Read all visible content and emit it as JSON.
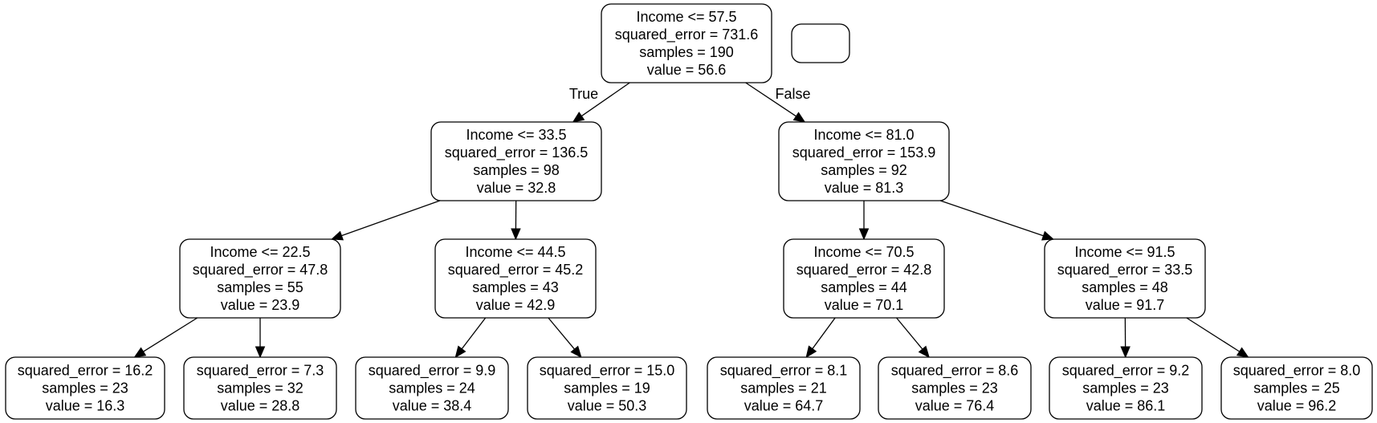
{
  "tree": {
    "nodes": [
      {
        "id": "n0",
        "lines": [
          "Income <= 57.5",
          "squared_error = 731.6",
          "samples = 190",
          "value = 56.6"
        ]
      },
      {
        "id": "n1",
        "lines": [
          "Income <= 33.5",
          "squared_error = 136.5",
          "samples = 98",
          "value = 32.8"
        ]
      },
      {
        "id": "n2",
        "lines": [
          "Income <= 22.5",
          "squared_error = 47.8",
          "samples = 55",
          "value = 23.9"
        ]
      },
      {
        "id": "n3",
        "lines": [
          "squared_error = 16.2",
          "samples = 23",
          "value = 16.3"
        ]
      },
      {
        "id": "n4",
        "lines": [
          "squared_error = 7.3",
          "samples = 32",
          "value = 28.8"
        ]
      },
      {
        "id": "n5",
        "lines": [
          "Income <= 44.5",
          "squared_error = 45.2",
          "samples = 43",
          "value = 42.9"
        ]
      },
      {
        "id": "n6",
        "lines": [
          "squared_error = 9.9",
          "samples = 24",
          "value = 38.4"
        ]
      },
      {
        "id": "n7",
        "lines": [
          "squared_error = 15.0",
          "samples = 19",
          "value = 50.3"
        ]
      },
      {
        "id": "n8",
        "lines": [
          "Income <= 81.0",
          "squared_error = 153.9",
          "samples = 92",
          "value = 81.3"
        ]
      },
      {
        "id": "n9",
        "lines": [
          "Income <= 70.5",
          "squared_error = 42.8",
          "samples = 44",
          "value = 70.1"
        ]
      },
      {
        "id": "n10",
        "lines": [
          "squared_error = 8.1",
          "samples = 21",
          "value = 64.7"
        ]
      },
      {
        "id": "n11",
        "lines": [
          "squared_error = 8.6",
          "samples = 23",
          "value = 76.4"
        ]
      },
      {
        "id": "n12",
        "lines": [
          "Income <= 91.5",
          "squared_error = 33.5",
          "samples = 48",
          "value = 91.7"
        ]
      },
      {
        "id": "n13",
        "lines": [
          "squared_error = 9.2",
          "samples = 23",
          "value = 86.1"
        ]
      },
      {
        "id": "n14",
        "lines": [
          "squared_error = 8.0",
          "samples = 25",
          "value = 96.2"
        ]
      },
      {
        "id": "legend",
        "lines": []
      }
    ],
    "edges": [
      {
        "from": "n0",
        "to": "n1",
        "label": "True"
      },
      {
        "from": "n0",
        "to": "n8",
        "label": "False"
      },
      {
        "from": "n1",
        "to": "n2"
      },
      {
        "from": "n1",
        "to": "n5"
      },
      {
        "from": "n2",
        "to": "n3"
      },
      {
        "from": "n2",
        "to": "n4"
      },
      {
        "from": "n5",
        "to": "n6"
      },
      {
        "from": "n5",
        "to": "n7"
      },
      {
        "from": "n8",
        "to": "n9"
      },
      {
        "from": "n8",
        "to": "n12"
      },
      {
        "from": "n9",
        "to": "n10"
      },
      {
        "from": "n9",
        "to": "n11"
      },
      {
        "from": "n12",
        "to": "n13"
      },
      {
        "from": "n12",
        "to": "n14"
      }
    ]
  }
}
